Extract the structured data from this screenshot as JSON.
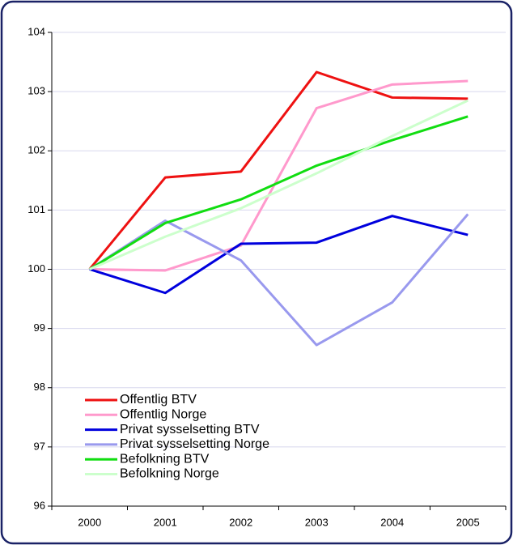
{
  "chart_data": {
    "type": "line",
    "categories": [
      "2000",
      "2001",
      "2002",
      "2003",
      "2004",
      "2005"
    ],
    "series": [
      {
        "name": "Offentlig BTV",
        "color": "#ee1111",
        "values": [
          100,
          101.55,
          101.65,
          103.33,
          102.9,
          102.88
        ]
      },
      {
        "name": "Offentlig Norge",
        "color": "#ff99cc",
        "values": [
          100,
          99.98,
          100.4,
          102.72,
          103.12,
          103.18
        ]
      },
      {
        "name": "Privat sysselsetting BTV",
        "color": "#0000dd",
        "values": [
          100,
          99.6,
          100.43,
          100.45,
          100.9,
          100.58
        ]
      },
      {
        "name": "Privat sysselsetting Norge",
        "color": "#9999ee",
        "values": [
          100,
          100.82,
          100.15,
          98.72,
          99.44,
          100.93
        ]
      },
      {
        "name": "Befolkning BTV",
        "color": "#11dd11",
        "values": [
          100,
          100.78,
          101.18,
          101.75,
          102.18,
          102.58
        ]
      },
      {
        "name": "Befolkning Norge",
        "color": "#ccffcc",
        "values": [
          100,
          100.55,
          101.03,
          101.62,
          102.25,
          102.85
        ]
      }
    ],
    "ylim": [
      96,
      104
    ],
    "yticks": [
      96,
      97,
      98,
      99,
      100,
      101,
      102,
      103,
      104
    ],
    "grid": true,
    "legend": "lower left"
  }
}
